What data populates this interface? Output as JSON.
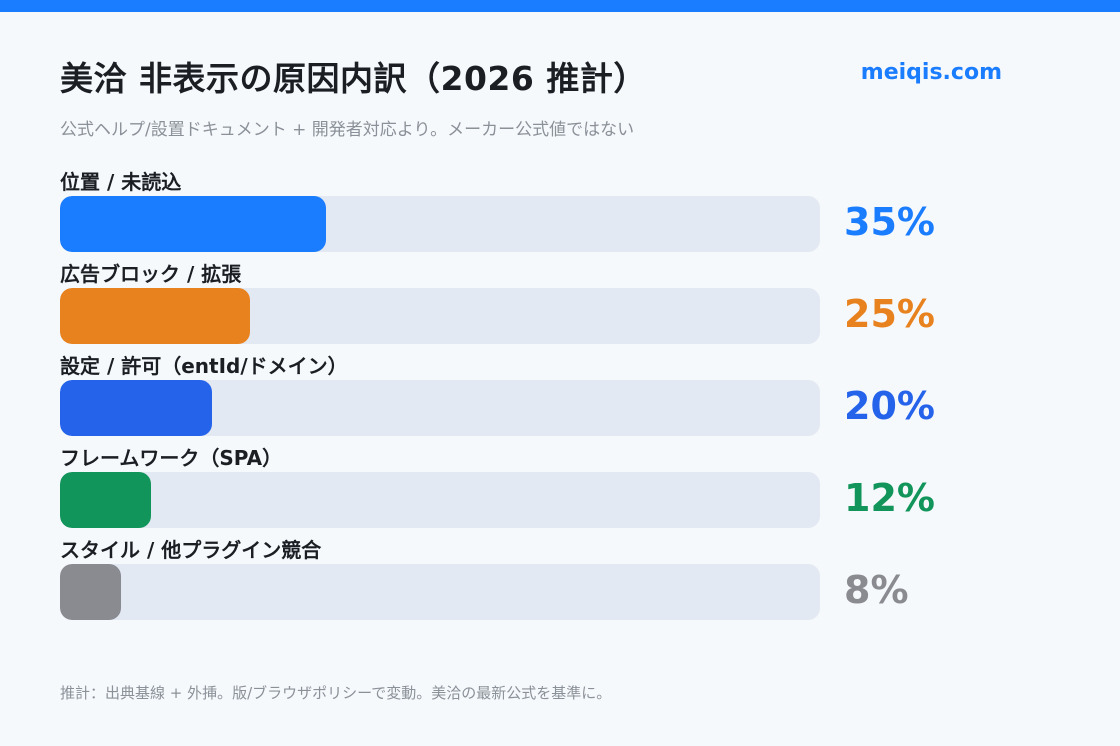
{
  "header": {
    "title": "美洽 非表示の原因内訳（2026 推計）",
    "brand": "meiqis.com",
    "subtitle": "公式ヘルプ/設置ドキュメント + 開発者対応より。メーカー公式値ではない"
  },
  "footer": {
    "note": "推計：出典基線 + 外挿。版/ブラウザポリシーで変動。美洽の最新公式を基準に。"
  },
  "chart_data": {
    "type": "bar",
    "orientation": "horizontal",
    "categories": [
      "位置 / 未読込",
      "広告ブロック / 拡張",
      "設定 / 許可（entId/ドメイン）",
      "フレームワーク（SPA）",
      "スタイル / 他プラグイン競合"
    ],
    "values": [
      35,
      25,
      20,
      12,
      8
    ],
    "value_labels": [
      "35%",
      "25%",
      "20%",
      "12%",
      "8%"
    ],
    "colors": [
      "#1a7cff",
      "#e8821e",
      "#2563eb",
      "#12955a",
      "#8a8a91"
    ],
    "xlim": [
      0,
      100
    ],
    "grid": false,
    "legend": "none"
  }
}
